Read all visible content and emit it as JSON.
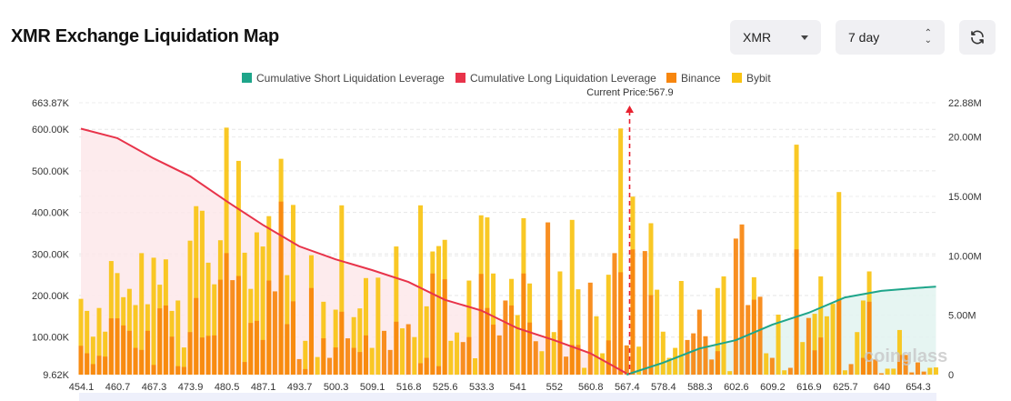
{
  "header": {
    "title": "XMR Exchange Liquidation Map",
    "coin_select": "XMR",
    "range_select": "7 day",
    "refresh_icon": "refresh-icon"
  },
  "colors": {
    "short_line": "#1ea58a",
    "long_line": "#e8334a",
    "binance": "#f7860f",
    "bybit": "#f9c312",
    "short_fill": "#e2f3f0",
    "long_fill": "#fde7ea"
  },
  "watermark": "coinglass",
  "chart_data": {
    "type": "bar",
    "legend": [
      "Cumulative Short Liquidation Leverage",
      "Cumulative Long Liquidation Leverage",
      "Binance",
      "Bybit"
    ],
    "legend_position": "top",
    "current_price_label": "Current Price:567.9",
    "current_price": 567.9,
    "x_tick_labels": [
      "454.1",
      "460.7",
      "467.3",
      "473.9",
      "480.5",
      "487.1",
      "493.7",
      "500.3",
      "509.1",
      "516.8",
      "525.6",
      "533.3",
      "541",
      "552",
      "560.8",
      "567.4",
      "578.4",
      "588.3",
      "602.6",
      "609.2",
      "616.9",
      "625.7",
      "640",
      "654.3"
    ],
    "y_left_ticks": [
      "663.87K",
      "600.00K",
      "500.00K",
      "400.00K",
      "300.00K",
      "200.00K",
      "100.00K",
      "9.62K"
    ],
    "y_left_lim_k": [
      9.62,
      663.87
    ],
    "y_right_ticks": [
      "22.88M",
      "20.00M",
      "15.00M",
      "10.00M",
      "5.00M",
      "0"
    ],
    "y_right_lim_m": [
      0,
      22.88
    ],
    "grid": true,
    "series": [
      {
        "name": "Binance",
        "stacked": true,
        "unit": "K",
        "values": [
          79,
          61,
          35,
          55,
          53,
          145,
          145,
          128,
          115,
          74,
          69,
          115,
          33,
          169,
          176,
          101,
          30,
          28,
          112,
          194,
          99,
          103,
          104,
          238,
          302,
          237,
          247,
          40,
          134,
          139,
          93,
          236,
          210,
          426,
          131,
          186,
          47,
          23,
          218,
          0,
          97,
          50,
          75,
          161,
          97,
          74,
          64,
          104,
          0,
          0,
          115,
          69,
          137,
          0,
          131,
          0,
          37,
          50,
          253,
          30,
          239,
          0,
          0,
          88,
          100,
          0,
          252,
          170,
          130,
          104,
          188,
          176,
          0,
          253,
          135,
          90,
          0,
          376,
          0,
          141,
          53,
          81,
          81,
          0,
          231,
          0,
          0,
          92,
          302,
          256,
          80,
          311,
          0,
          307,
          201,
          0,
          0,
          0,
          0,
          0,
          93,
          109,
          166,
          102,
          46,
          66,
          0,
          0,
          337,
          371,
          177,
          190,
          197,
          0,
          50,
          0,
          0,
          26,
          311,
          0,
          146,
          68,
          99,
          0,
          0,
          192,
          0,
          35,
          0,
          50,
          185,
          46,
          13,
          0,
          0,
          57,
          57,
          15,
          39,
          17,
          0,
          0
        ]
      },
      {
        "name": "Bybit",
        "stacked": true,
        "unit": "K",
        "values": [
          113,
          102,
          66,
          115,
          60,
          138,
          109,
          68,
          101,
          103,
          233,
          64,
          258,
          57,
          111,
          62,
          158,
          47,
          220,
          221,
          305,
          176,
          123,
          95,
          302,
          0,
          277,
          263,
          82,
          213,
          225,
          155,
          0,
          103,
          118,
          232,
          0,
          68,
          79,
          52,
          88,
          0,
          91,
          256,
          0,
          74,
          105,
          138,
          74,
          243,
          0,
          0,
          181,
          121,
          0,
          100,
          380,
          124,
          53,
          289,
          95,
          91,
          111,
          0,
          136,
          49,
          141,
          218,
          123,
          0,
          0,
          64,
          153,
          133,
          94,
          0,
          66,
          0,
          112,
          117,
          0,
          301,
          134,
          26,
          0,
          150,
          61,
          158,
          0,
          346,
          0,
          127,
          77,
          0,
          173,
          214,
          113,
          50,
          74,
          235,
          0,
          0,
          0,
          0,
          0,
          152,
          246,
          18,
          0,
          0,
          0,
          54,
          0,
          61,
          0,
          154,
          20,
          0,
          252,
          88,
          0,
          88,
          147,
          150,
          180,
          257,
          20,
          0,
          112,
          138,
          73,
          0,
          0,
          24,
          24,
          60,
          0,
          0,
          0,
          0,
          26,
          27
        ]
      },
      {
        "name": "Cumulative Long Liquidation Leverage",
        "type": "line",
        "unit": "M",
        "at_tick_labels": [
          20.7,
          19.9,
          18.2,
          16.7,
          14.6,
          12.6,
          10.8,
          9.7,
          8.8,
          7.8,
          6.3,
          5.4,
          3.9,
          2.9,
          1.8,
          0.1,
          null,
          null,
          null,
          null,
          null,
          null,
          null,
          null
        ]
      },
      {
        "name": "Cumulative Short Liquidation Leverage",
        "type": "line",
        "unit": "M",
        "at_tick_labels": [
          null,
          null,
          null,
          null,
          null,
          null,
          null,
          null,
          null,
          null,
          null,
          null,
          null,
          null,
          null,
          0.0,
          1.0,
          2.2,
          2.9,
          4.2,
          5.2,
          6.5,
          7.05,
          7.3
        ],
        "last_value": 7.4
      }
    ]
  }
}
